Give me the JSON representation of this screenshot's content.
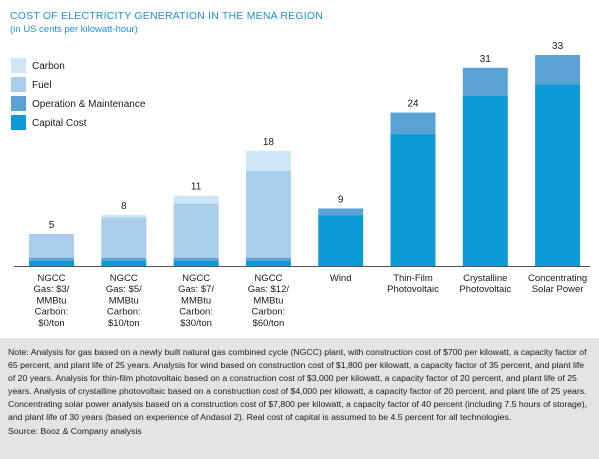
{
  "title": "COST OF ELECTRICITY GENERATION IN THE MENA REGION",
  "subtitle": "(in US cents per kilowatt-hour)",
  "note": "Note: Analysis for gas based on a newly built natural gas combined cycle (NGCC) plant, with construction cost of $700 per kilowatt, a capacity factor of 65 percent, and plant life of 25 years. Analysis for wind based on construction cost of $1,800 per kilowatt, a capacity factor of 35 percent, and plant life of 20 years. Analysis for thin-film photovoltaic based on a construction cost of $3,000 per kilowatt, a capacity factor of 20 percent, and plant life of 25 years. Analysis of crystalline photovoltaic based on a construction cost of $4,000 per kilowatt, a capacity factor of 20 percent, and plant life of 25 years. Concentrating solar power analysis based on a construction cost of $7,800 per kilowatt, a capacity factor of 40 percent (including 7.5 hours of storage), and plant life of 30 years (based on experience of Andasol 2). Real cost of capital is assumed to be 4.5 percent for all technologies.",
  "source": "Source: Booz & Company analysis",
  "colors": {
    "carbon": "#cfe6f6",
    "fuel": "#a9cdeb",
    "om": "#5ba2d4",
    "capital": "#0e9ad6",
    "note_bg": "#e4e4e4",
    "title": "#1f8fd4"
  },
  "chart_data": {
    "type": "bar",
    "stacked": true,
    "title": "COST OF ELECTRICITY GENERATION IN THE MENA REGION",
    "subtitle": "(in US cents per kilowatt-hour)",
    "categories": [
      [
        "NGCC",
        "Gas: $3/",
        "MMBtu",
        "Carbon:",
        "$0/ton"
      ],
      [
        "NGCC",
        "Gas: $5/",
        "MMBtu",
        "Carbon:",
        "$10/ton"
      ],
      [
        "NGCC",
        "Gas: $7/",
        "MMBtu",
        "Carbon:",
        "$30/ton"
      ],
      [
        "NGCC",
        "Gas: $12/",
        "MMBtu",
        "Carbon:",
        "$60/ton"
      ],
      [
        "Wind"
      ],
      [
        "Thin-Film",
        "Photovoltaic"
      ],
      [
        "Crystalline",
        "Photovoltaic"
      ],
      [
        "Concentrating",
        "Solar Power"
      ]
    ],
    "totals": [
      "5",
      "8",
      "11",
      "18",
      "9",
      "24",
      "31",
      "33"
    ],
    "series": [
      {
        "name": "Capital Cost",
        "key": "capital",
        "values": [
          0.8,
          0.8,
          0.8,
          0.8,
          7.9,
          20.7,
          26.6,
          28.4
        ]
      },
      {
        "name": "Operation & Maintenance",
        "key": "om",
        "values": [
          0.5,
          0.5,
          0.5,
          0.5,
          1.1,
          3.3,
          4.4,
          4.6
        ]
      },
      {
        "name": "Fuel",
        "key": "fuel",
        "values": [
          3.7,
          6.3,
          8.5,
          13.6,
          0,
          0,
          0,
          0
        ]
      },
      {
        "name": "Carbon",
        "key": "carbon",
        "values": [
          0,
          0.4,
          1.2,
          3.1,
          0,
          0,
          0,
          0
        ]
      }
    ],
    "legend": [
      "Carbon",
      "Fuel",
      "Operation & Maintenance",
      "Capital Cost"
    ],
    "legend_position": "top-left",
    "ylim": [
      0,
      33
    ],
    "grid": false
  }
}
